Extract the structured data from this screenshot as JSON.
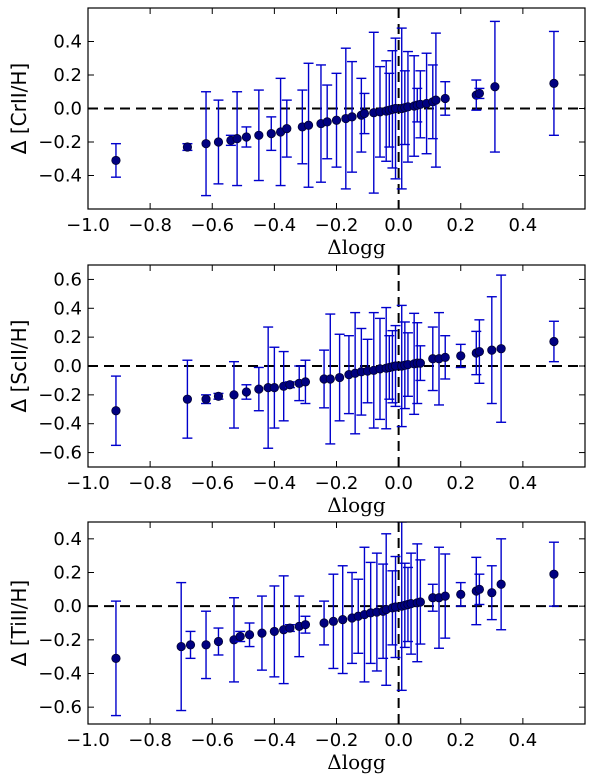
{
  "chart_data": [
    {
      "type": "scatter",
      "ylabel": "Δ [CrII/H]",
      "xlabel": "Δlogg",
      "xlim": [
        -1.0,
        0.6
      ],
      "ylim": [
        -0.6,
        0.6
      ],
      "xticks": [
        "−1.0",
        "−0.8",
        "−0.6",
        "−0.4",
        "−0.2",
        "0.0",
        "0.2",
        "0.4"
      ],
      "yticks": [
        "−0.4",
        "−0.2",
        "0.0",
        "0.2",
        "0.4"
      ],
      "reference_lines": {
        "horizontal_y": 0.0,
        "vertical_x": 0.0,
        "style": "dashed"
      },
      "marker_color": "#000080",
      "errorbar_color": "#0000cc",
      "points": [
        {
          "x": -0.91,
          "y": -0.31,
          "err": 0.1
        },
        {
          "x": -0.68,
          "y": -0.23,
          "err": 0.02
        },
        {
          "x": -0.62,
          "y": -0.21,
          "err": 0.31
        },
        {
          "x": -0.58,
          "y": -0.2,
          "err": 0.25
        },
        {
          "x": -0.54,
          "y": -0.19,
          "err": 0.03
        },
        {
          "x": -0.52,
          "y": -0.18,
          "err": 0.28
        },
        {
          "x": -0.49,
          "y": -0.17,
          "err": 0.06
        },
        {
          "x": -0.45,
          "y": -0.16,
          "err": 0.27
        },
        {
          "x": -0.41,
          "y": -0.15,
          "err": 0.1
        },
        {
          "x": -0.38,
          "y": -0.14,
          "err": 0.32
        },
        {
          "x": -0.36,
          "y": -0.12,
          "err": 0.17
        },
        {
          "x": -0.31,
          "y": -0.11,
          "err": 0.22
        },
        {
          "x": -0.29,
          "y": -0.1,
          "err": 0.37
        },
        {
          "x": -0.25,
          "y": -0.09,
          "err": 0.35
        },
        {
          "x": -0.23,
          "y": -0.08,
          "err": 0.22
        },
        {
          "x": -0.2,
          "y": -0.07,
          "err": 0.28
        },
        {
          "x": -0.17,
          "y": -0.06,
          "err": 0.42
        },
        {
          "x": -0.15,
          "y": -0.05,
          "err": 0.33
        },
        {
          "x": -0.12,
          "y": -0.04,
          "err": 0.22
        },
        {
          "x": -0.11,
          "y": -0.03,
          "err": 0.12
        },
        {
          "x": -0.08,
          "y": -0.025,
          "err": 0.48
        },
        {
          "x": -0.06,
          "y": -0.02,
          "err": 0.27
        },
        {
          "x": -0.04,
          "y": -0.015,
          "err": 0.3
        },
        {
          "x": -0.03,
          "y": -0.01,
          "err": 0.22
        },
        {
          "x": -0.02,
          "y": -0.005,
          "err": 0.35
        },
        {
          "x": -0.01,
          "y": 0.0,
          "err": 0.42
        },
        {
          "x": 0.01,
          "y": 0.0,
          "err": 0.48
        },
        {
          "x": 0.02,
          "y": 0.005,
          "err": 0.22
        },
        {
          "x": 0.03,
          "y": 0.01,
          "err": 0.33
        },
        {
          "x": 0.05,
          "y": 0.015,
          "err": 0.3
        },
        {
          "x": 0.06,
          "y": 0.02,
          "err": 0.1
        },
        {
          "x": 0.07,
          "y": 0.025,
          "err": 0.2
        },
        {
          "x": 0.09,
          "y": 0.03,
          "err": 0.3
        },
        {
          "x": 0.11,
          "y": 0.04,
          "err": 0.22
        },
        {
          "x": 0.12,
          "y": 0.05,
          "err": 0.4
        },
        {
          "x": 0.15,
          "y": 0.06,
          "err": 0.1
        },
        {
          "x": 0.25,
          "y": 0.08,
          "err": 0.09
        },
        {
          "x": 0.26,
          "y": 0.09,
          "err": 0.03
        },
        {
          "x": 0.31,
          "y": 0.13,
          "err": 0.39
        },
        {
          "x": 0.5,
          "y": 0.15,
          "err": 0.31
        }
      ]
    },
    {
      "type": "scatter",
      "ylabel": "Δ [ScII/H]",
      "xlabel": "Δlogg",
      "xlim": [
        -1.0,
        0.6
      ],
      "ylim": [
        -0.7,
        0.7
      ],
      "xticks": [
        "−1.0",
        "−0.8",
        "−0.6",
        "−0.4",
        "−0.2",
        "0.0",
        "0.2",
        "0.4"
      ],
      "yticks": [
        "−0.6",
        "−0.4",
        "−0.2",
        "0.0",
        "0.2",
        "0.4",
        "0.6"
      ],
      "reference_lines": {
        "horizontal_y": 0.0,
        "vertical_x": 0.0,
        "style": "dashed"
      },
      "marker_color": "#000080",
      "errorbar_color": "#0000cc",
      "points": [
        {
          "x": -0.91,
          "y": -0.31,
          "err": 0.24
        },
        {
          "x": -0.68,
          "y": -0.23,
          "err": 0.27
        },
        {
          "x": -0.62,
          "y": -0.23,
          "err": 0.03
        },
        {
          "x": -0.58,
          "y": -0.21,
          "err": 0.02
        },
        {
          "x": -0.53,
          "y": -0.2,
          "err": 0.23
        },
        {
          "x": -0.49,
          "y": -0.18,
          "err": 0.05
        },
        {
          "x": -0.45,
          "y": -0.16,
          "err": 0.15
        },
        {
          "x": -0.42,
          "y": -0.15,
          "err": 0.42
        },
        {
          "x": -0.4,
          "y": -0.15,
          "err": 0.28
        },
        {
          "x": -0.37,
          "y": -0.14,
          "err": 0.24
        },
        {
          "x": -0.35,
          "y": -0.13,
          "err": 0.02
        },
        {
          "x": -0.32,
          "y": -0.12,
          "err": 0.12
        },
        {
          "x": -0.3,
          "y": -0.11,
          "err": 0.15
        },
        {
          "x": -0.24,
          "y": -0.09,
          "err": 0.2
        },
        {
          "x": -0.22,
          "y": -0.09,
          "err": 0.45
        },
        {
          "x": -0.19,
          "y": -0.08,
          "err": 0.3
        },
        {
          "x": -0.16,
          "y": -0.06,
          "err": 0.27
        },
        {
          "x": -0.14,
          "y": -0.05,
          "err": 0.42
        },
        {
          "x": -0.12,
          "y": -0.04,
          "err": 0.3
        },
        {
          "x": -0.1,
          "y": -0.035,
          "err": 0.22
        },
        {
          "x": -0.08,
          "y": -0.03,
          "err": 0.4
        },
        {
          "x": -0.06,
          "y": -0.02,
          "err": 0.35
        },
        {
          "x": -0.04,
          "y": -0.015,
          "err": 0.42
        },
        {
          "x": -0.03,
          "y": -0.01,
          "err": 0.22
        },
        {
          "x": -0.02,
          "y": -0.005,
          "err": 0.25
        },
        {
          "x": -0.01,
          "y": 0.0,
          "err": 0.28
        },
        {
          "x": 0.01,
          "y": 0.0,
          "err": 0.42
        },
        {
          "x": 0.02,
          "y": 0.005,
          "err": 0.3
        },
        {
          "x": 0.03,
          "y": 0.01,
          "err": 0.22
        },
        {
          "x": 0.05,
          "y": 0.015,
          "err": 0.35
        },
        {
          "x": 0.06,
          "y": 0.02,
          "err": 0.28
        },
        {
          "x": 0.07,
          "y": 0.02,
          "err": 0.12
        },
        {
          "x": 0.11,
          "y": 0.05,
          "err": 0.22
        },
        {
          "x": 0.13,
          "y": 0.05,
          "err": 0.32
        },
        {
          "x": 0.15,
          "y": 0.06,
          "err": 0.15
        },
        {
          "x": 0.2,
          "y": 0.07,
          "err": 0.08
        },
        {
          "x": 0.25,
          "y": 0.09,
          "err": 0.15
        },
        {
          "x": 0.26,
          "y": 0.1,
          "err": 0.22
        },
        {
          "x": 0.3,
          "y": 0.11,
          "err": 0.37
        },
        {
          "x": 0.33,
          "y": 0.12,
          "err": 0.51
        },
        {
          "x": 0.5,
          "y": 0.17,
          "err": 0.14
        }
      ]
    },
    {
      "type": "scatter",
      "ylabel": "Δ [TiII/H]",
      "xlabel": "Δlogg",
      "xlim": [
        -1.0,
        0.6
      ],
      "ylim": [
        -0.7,
        0.5
      ],
      "xticks": [
        "−1.0",
        "−0.8",
        "−0.6",
        "−0.4",
        "−0.2",
        "0.0",
        "0.2",
        "0.4"
      ],
      "yticks": [
        "−0.6",
        "−0.4",
        "−0.2",
        "0.0",
        "0.2",
        "0.4"
      ],
      "reference_lines": {
        "horizontal_y": 0.0,
        "vertical_x": 0.0,
        "style": "dashed"
      },
      "marker_color": "#000080",
      "errorbar_color": "#0000cc",
      "points": [
        {
          "x": -0.91,
          "y": -0.31,
          "err": 0.34
        },
        {
          "x": -0.7,
          "y": -0.24,
          "err": 0.38
        },
        {
          "x": -0.67,
          "y": -0.23,
          "err": 0.08
        },
        {
          "x": -0.62,
          "y": -0.23,
          "err": 0.2
        },
        {
          "x": -0.58,
          "y": -0.21,
          "err": 0.08
        },
        {
          "x": -0.53,
          "y": -0.2,
          "err": 0.25
        },
        {
          "x": -0.51,
          "y": -0.18,
          "err": 0.03
        },
        {
          "x": -0.48,
          "y": -0.17,
          "err": 0.07
        },
        {
          "x": -0.44,
          "y": -0.16,
          "err": 0.22
        },
        {
          "x": -0.4,
          "y": -0.15,
          "err": 0.27
        },
        {
          "x": -0.37,
          "y": -0.14,
          "err": 0.32
        },
        {
          "x": -0.35,
          "y": -0.13,
          "err": 0.02
        },
        {
          "x": -0.32,
          "y": -0.12,
          "err": 0.18
        },
        {
          "x": -0.3,
          "y": -0.11,
          "err": 0.05
        },
        {
          "x": -0.24,
          "y": -0.1,
          "err": 0.13
        },
        {
          "x": -0.21,
          "y": -0.09,
          "err": 0.28
        },
        {
          "x": -0.18,
          "y": -0.08,
          "err": 0.32
        },
        {
          "x": -0.15,
          "y": -0.07,
          "err": 0.27
        },
        {
          "x": -0.13,
          "y": -0.06,
          "err": 0.22
        },
        {
          "x": -0.11,
          "y": -0.05,
          "err": 0.4
        },
        {
          "x": -0.09,
          "y": -0.04,
          "err": 0.3
        },
        {
          "x": -0.07,
          "y": -0.035,
          "err": 0.35
        },
        {
          "x": -0.05,
          "y": -0.03,
          "err": 0.28
        },
        {
          "x": -0.04,
          "y": -0.02,
          "err": 0.45
        },
        {
          "x": -0.02,
          "y": -0.01,
          "err": 0.22
        },
        {
          "x": -0.01,
          "y": -0.005,
          "err": 0.3
        },
        {
          "x": 0.01,
          "y": 0.0,
          "err": 0.5
        },
        {
          "x": 0.02,
          "y": 0.005,
          "err": 0.25
        },
        {
          "x": 0.03,
          "y": 0.01,
          "err": 0.22
        },
        {
          "x": 0.04,
          "y": 0.015,
          "err": 0.3
        },
        {
          "x": 0.06,
          "y": 0.02,
          "err": 0.35
        },
        {
          "x": 0.07,
          "y": 0.025,
          "err": 0.25
        },
        {
          "x": 0.11,
          "y": 0.05,
          "err": 0.08
        },
        {
          "x": 0.13,
          "y": 0.05,
          "err": 0.3
        },
        {
          "x": 0.15,
          "y": 0.06,
          "err": 0.25
        },
        {
          "x": 0.2,
          "y": 0.07,
          "err": 0.07
        },
        {
          "x": 0.25,
          "y": 0.09,
          "err": 0.2
        },
        {
          "x": 0.26,
          "y": 0.1,
          "err": 0.09
        },
        {
          "x": 0.3,
          "y": 0.08,
          "err": 0.16
        },
        {
          "x": 0.33,
          "y": 0.13,
          "err": 0.27
        },
        {
          "x": 0.5,
          "y": 0.19,
          "err": 0.19
        }
      ]
    }
  ]
}
